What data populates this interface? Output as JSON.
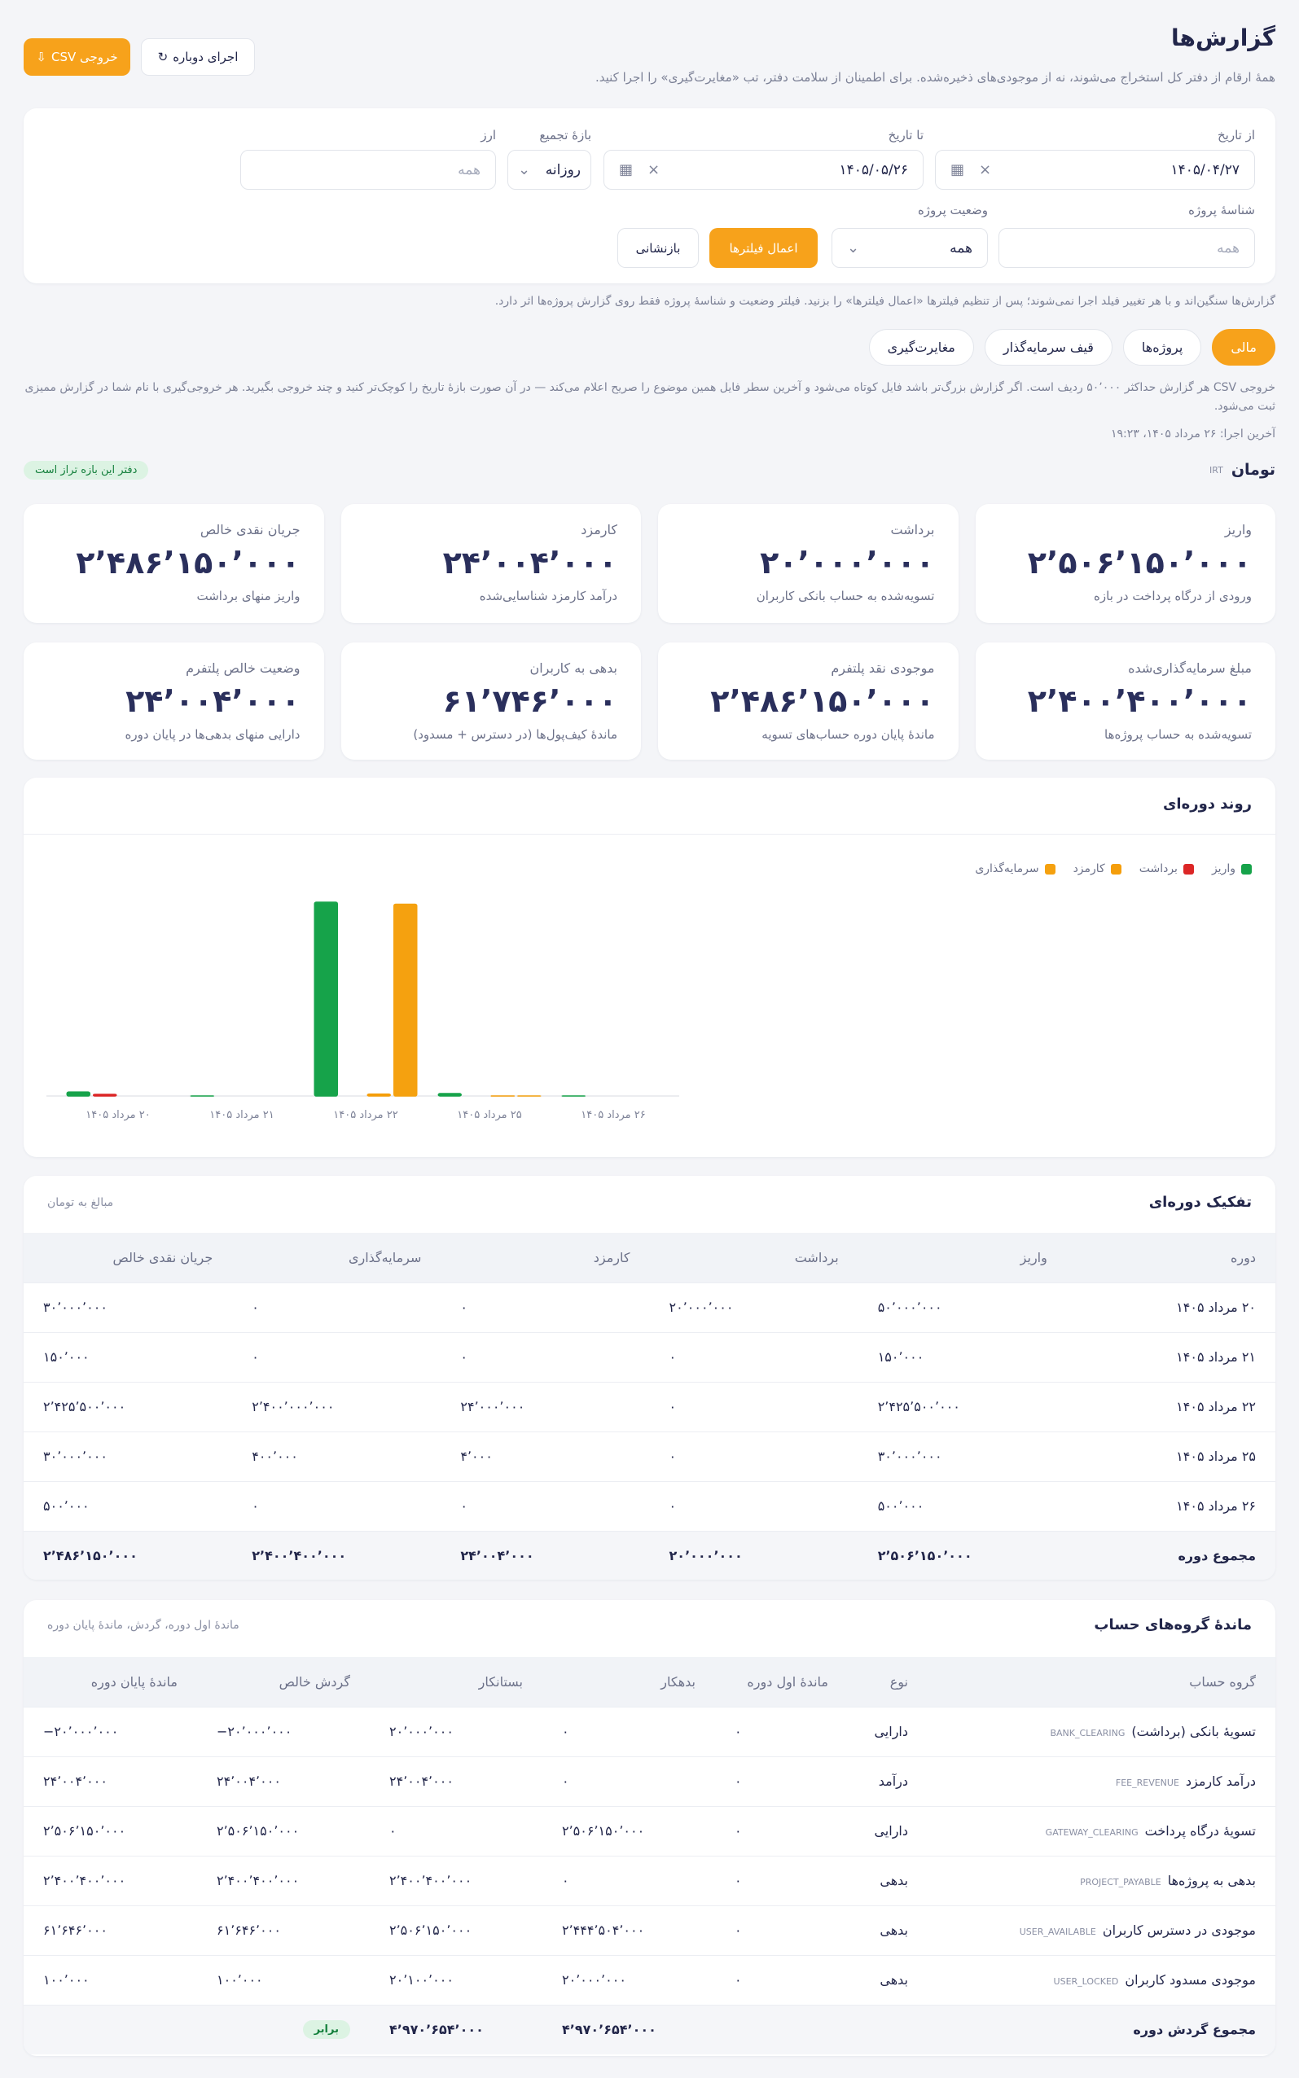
{
  "header": {
    "title": "گزارش‌ها",
    "subtitle": "همهٔ ارقام از دفتر کل استخراج می‌شوند، نه از موجودی‌های ذخیره‌شده. برای اطمینان از سلامت دفتر، تب «مغایرت‌گیری» را اجرا کنید.",
    "rerun": "اجرای دوباره",
    "export": "خروجی CSV"
  },
  "filters": {
    "from_label": "از تاریخ",
    "from_value": "۱۴۰۵/۰۴/۲۷",
    "to_label": "تا تاریخ",
    "to_value": "۱۴۰۵/۰۵/۲۶",
    "granularity_label": "بازهٔ تجمیع",
    "granularity_value": "روزانه",
    "currency_label": "ارز",
    "currency_placeholder": "همه",
    "project_id_label": "شناسهٔ پروژه",
    "project_id_placeholder": "همه",
    "status_label": "وضعیت پروژه",
    "status_value": "همه",
    "apply": "اعمال فیلترها",
    "reset": "بازنشانی"
  },
  "filter_note": "گزارش‌ها سنگین‌اند و با هر تغییر فیلد اجرا نمی‌شوند؛ پس از تنظیم فیلترها «اعمال فیلترها» را بزنید. فیلتر وضعیت و شناسهٔ پروژه فقط روی گزارش پروژه‌ها اثر دارد.",
  "tabs": [
    "مالی",
    "پروژه‌ها",
    "قیف سرمایه‌گذار",
    "مغایرت‌گیری"
  ],
  "csv_note": "خروجی CSV هر گزارش حداکثر ۵۰٬۰۰۰ ردیف است. اگر گزارش بزرگ‌تر باشد فایل کوتاه می‌شود و آخرین سطر فایل همین موضوع را صریح اعلام می‌کند — در آن صورت بازهٔ تاریخ را کوچک‌تر کنید و چند خروجی بگیرید. هر خروجی‌گیری با نام شما در گزارش ممیزی ثبت می‌شود.",
  "last_run": "آخرین اجرا: ۲۶ مرداد ۱۴۰۵، ۱۹:۲۳",
  "currency": {
    "name": "تومان",
    "code": "IRT",
    "badge": "دفتر این بازه تراز است"
  },
  "kpis": [
    {
      "label": "واریز",
      "value": "۲٬۵۰۶٬۱۵۰٬۰۰۰",
      "hint": "ورودی از درگاه پرداخت در بازه"
    },
    {
      "label": "برداشت",
      "value": "۲۰٬۰۰۰٬۰۰۰",
      "hint": "تسویه‌شده به حساب بانکی کاربران"
    },
    {
      "label": "کارمزد",
      "value": "۲۴٬۰۰۴٬۰۰۰",
      "hint": "درآمد کارمزد شناسایی‌شده"
    },
    {
      "label": "جریان نقدی خالص",
      "value": "۲٬۴۸۶٬۱۵۰٬۰۰۰",
      "hint": "واریز منهای برداشت"
    },
    {
      "label": "مبلغ سرمایه‌گذاری‌شده",
      "value": "۲٬۴۰۰٬۴۰۰٬۰۰۰",
      "hint": "تسویه‌شده به حساب پروژه‌ها"
    },
    {
      "label": "موجودی نقد پلتفرم",
      "value": "۲٬۴۸۶٬۱۵۰٬۰۰۰",
      "hint": "ماندهٔ پایان دوره حساب‌های تسویه"
    },
    {
      "label": "بدهی به کاربران",
      "value": "۶۱٬۷۴۶٬۰۰۰",
      "hint": "ماندهٔ کیف‌پول‌ها (در دسترس + مسدود)"
    },
    {
      "label": "وضعیت خالص پلتفرم",
      "value": "۲۴٬۰۰۴٬۰۰۰",
      "hint": "دارایی منهای بدهی‌ها در پایان دوره"
    }
  ],
  "chart_data": {
    "type": "bar",
    "title": "روند دوره‌ای",
    "categories": [
      "۲۰ مرداد ۱۴۰۵",
      "۲۱ مرداد ۱۴۰۵",
      "۲۲ مرداد ۱۴۰۵",
      "۲۵ مرداد ۱۴۰۵",
      "۲۶ مرداد ۱۴۰۵"
    ],
    "series": [
      {
        "name": "واریز",
        "color": "#16a34a",
        "values": [
          50000000,
          150000,
          2425500000,
          30000000,
          500000
        ]
      },
      {
        "name": "برداشت",
        "color": "#dc2626",
        "values": [
          20000000,
          0,
          0,
          0,
          0
        ]
      },
      {
        "name": "کارمزد",
        "color": "#f59e0b",
        "values": [
          0,
          0,
          24000000,
          4000,
          0
        ]
      },
      {
        "name": "سرمایه‌گذاری",
        "color": "#f5a10f",
        "values": [
          0,
          0,
          2400000000,
          400000,
          0
        ]
      }
    ]
  },
  "period_table": {
    "title": "تفکیک دوره‌ای",
    "note": "مبالغ به تومان",
    "columns": [
      "دوره",
      "واریز",
      "برداشت",
      "کارمزد",
      "سرمایه‌گذاری",
      "جریان نقدی خالص"
    ],
    "rows": [
      [
        "۲۰ مرداد ۱۴۰۵",
        "۵۰٬۰۰۰٬۰۰۰",
        "۲۰٬۰۰۰٬۰۰۰",
        "۰",
        "۰",
        "۳۰٬۰۰۰٬۰۰۰"
      ],
      [
        "۲۱ مرداد ۱۴۰۵",
        "۱۵۰٬۰۰۰",
        "۰",
        "۰",
        "۰",
        "۱۵۰٬۰۰۰"
      ],
      [
        "۲۲ مرداد ۱۴۰۵",
        "۲٬۴۲۵٬۵۰۰٬۰۰۰",
        "۰",
        "۲۴٬۰۰۰٬۰۰۰",
        "۲٬۴۰۰٬۰۰۰٬۰۰۰",
        "۲٬۴۲۵٬۵۰۰٬۰۰۰"
      ],
      [
        "۲۵ مرداد ۱۴۰۵",
        "۳۰٬۰۰۰٬۰۰۰",
        "۰",
        "۴٬۰۰۰",
        "۴۰۰٬۰۰۰",
        "۳۰٬۰۰۰٬۰۰۰"
      ],
      [
        "۲۶ مرداد ۱۴۰۵",
        "۵۰۰٬۰۰۰",
        "۰",
        "۰",
        "۰",
        "۵۰۰٬۰۰۰"
      ]
    ],
    "total": [
      "مجموع دوره",
      "۲٬۵۰۶٬۱۵۰٬۰۰۰",
      "۲۰٬۰۰۰٬۰۰۰",
      "۲۴٬۰۰۴٬۰۰۰",
      "۲٬۴۰۰٬۴۰۰٬۰۰۰",
      "۲٬۴۸۶٬۱۵۰٬۰۰۰"
    ]
  },
  "balances": {
    "title": "ماندهٔ گروه‌های حساب",
    "note": "ماندهٔ اول دوره، گردش، ماندهٔ پایان دوره",
    "columns": [
      "گروه حساب",
      "نوع",
      "ماندهٔ اول دوره",
      "بدهکار",
      "بستانکار",
      "گردش خالص",
      "ماندهٔ پایان دوره"
    ],
    "rows": [
      [
        "تسویهٔ بانکی (برداشت)",
        "BANK_CLEARING",
        "دارایی",
        "۰",
        "۰",
        "۲۰٬۰۰۰٬۰۰۰",
        "−۲۰٬۰۰۰٬۰۰۰",
        "−۲۰٬۰۰۰٬۰۰۰"
      ],
      [
        "درآمد کارمزد",
        "FEE_REVENUE",
        "درآمد",
        "۰",
        "۰",
        "۲۴٬۰۰۴٬۰۰۰",
        "۲۴٬۰۰۴٬۰۰۰",
        "۲۴٬۰۰۴٬۰۰۰"
      ],
      [
        "تسویهٔ درگاه پرداخت",
        "GATEWAY_CLEARING",
        "دارایی",
        "۰",
        "۲٬۵۰۶٬۱۵۰٬۰۰۰",
        "۰",
        "۲٬۵۰۶٬۱۵۰٬۰۰۰",
        "۲٬۵۰۶٬۱۵۰٬۰۰۰"
      ],
      [
        "بدهی به پروژه‌ها",
        "PROJECT_PAYABLE",
        "بدهی",
        "۰",
        "۰",
        "۲٬۴۰۰٬۴۰۰٬۰۰۰",
        "۲٬۴۰۰٬۴۰۰٬۰۰۰",
        "۲٬۴۰۰٬۴۰۰٬۰۰۰"
      ],
      [
        "موجودی در دسترس کاربران",
        "USER_AVAILABLE",
        "بدهی",
        "۰",
        "۲٬۴۴۴٬۵۰۴٬۰۰۰",
        "۲٬۵۰۶٬۱۵۰٬۰۰۰",
        "۶۱٬۶۴۶٬۰۰۰",
        "۶۱٬۶۴۶٬۰۰۰"
      ],
      [
        "موجودی مسدود کاربران",
        "USER_LOCKED",
        "بدهی",
        "۰",
        "۲۰٬۰۰۰٬۰۰۰",
        "۲۰٬۱۰۰٬۰۰۰",
        "۱۰۰٬۰۰۰",
        "۱۰۰٬۰۰۰"
      ]
    ],
    "total": {
      "label": "مجموع گردش دوره",
      "debit": "۴٬۹۷۰٬۶۵۴٬۰۰۰",
      "credit": "۴٬۹۷۰٬۶۵۴٬۰۰۰",
      "badge": "برابر"
    }
  }
}
